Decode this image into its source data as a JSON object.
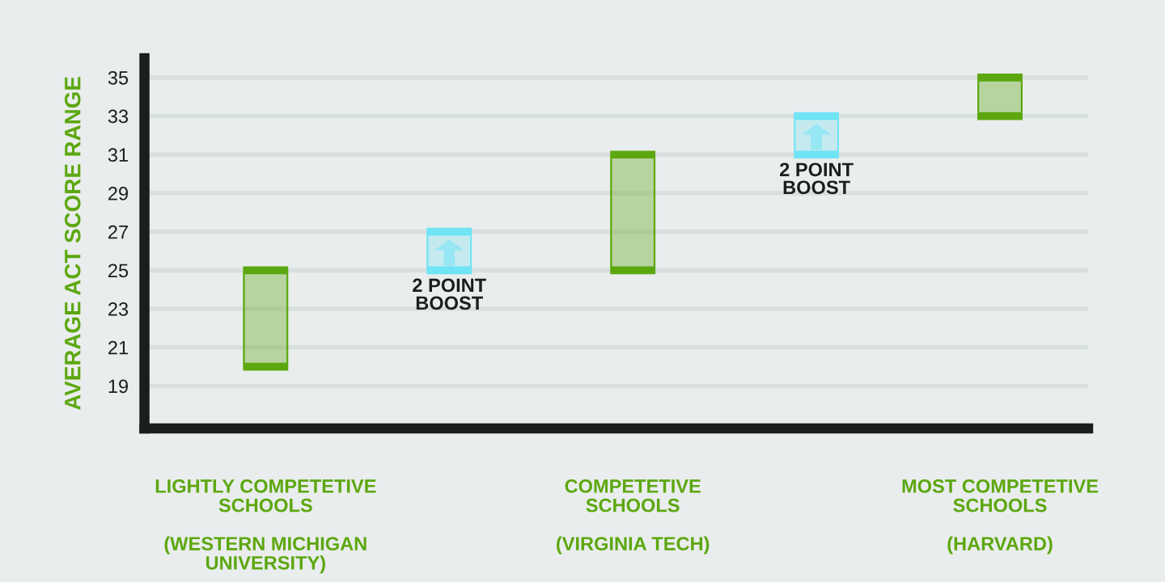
{
  "chart_data": {
    "type": "bar",
    "ylabel": "AVERAGE ACT SCORE RANGE",
    "categories": [
      "LIGHTLY COMPETETIVE\nSCHOOLS\n\n(WESTERN MICHIGAN\nUNIVERSITY)",
      null,
      "COMPETETIVE\nSCHOOLS\n\n(VIRGINIA TECH)",
      null,
      "MOST COMPETETIVE\nSCHOOLS\n\n(HARVARD)"
    ],
    "series": [
      {
        "color": "#5ca70f",
        "base": [
          20,
          null,
          25,
          null,
          33
        ],
        "values": [
          5,
          null,
          6,
          null,
          2
        ]
      },
      {
        "color": "#6fe4f5",
        "base": [
          null,
          25,
          null,
          31,
          null
        ],
        "values": [
          null,
          2,
          null,
          2,
          null
        ],
        "value_labels": [
          null,
          "2 POINT\nBOOST",
          null,
          "2 POINT\nBOOST",
          null
        ]
      }
    ],
    "ylim": [
      16.8,
      36
    ],
    "yticks": [
      19,
      21,
      23,
      25,
      27,
      29,
      31,
      33,
      35
    ],
    "grid": "y"
  }
}
